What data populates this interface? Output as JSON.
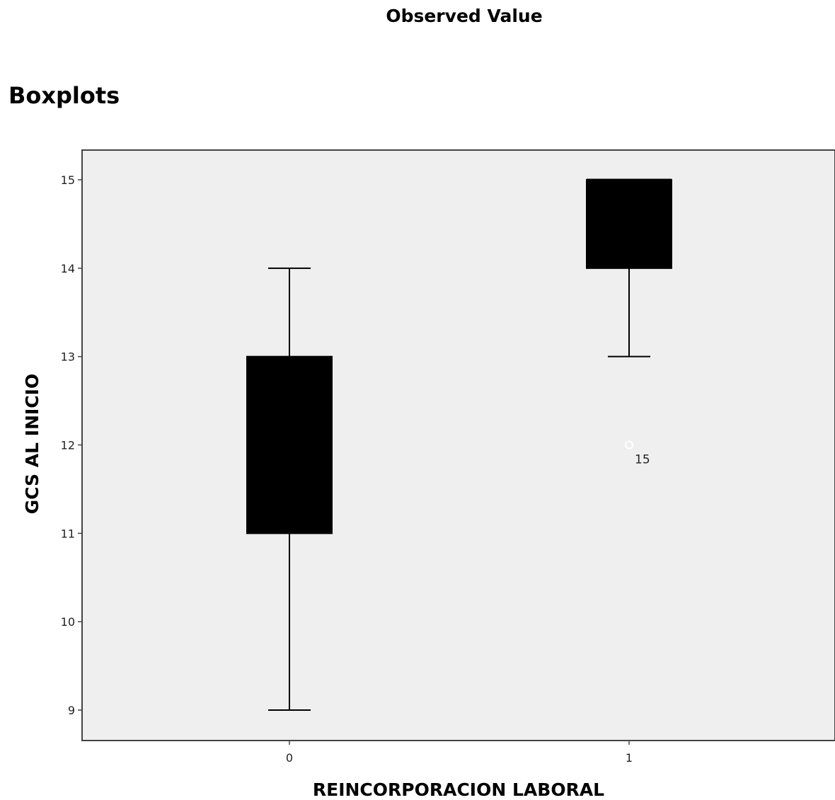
{
  "header": {
    "caption": "Observed Value",
    "section_title": "Boxplots"
  },
  "chart_data": {
    "type": "boxplot",
    "xlabel": "REINCORPORACION LABORAL",
    "ylabel": "GCS AL INICIO",
    "categories": [
      "0",
      "1"
    ],
    "ylim": [
      8.6,
      15.35
    ],
    "yticks": [
      9,
      10,
      11,
      12,
      13,
      14,
      15
    ],
    "grid": false,
    "boxes": [
      {
        "category": "0",
        "whisker_low": 9,
        "q1": 11,
        "median": 12,
        "q3": 13,
        "whisker_high": 14,
        "outliers": []
      },
      {
        "category": "1",
        "whisker_low": 13,
        "q1": 14,
        "median": 15,
        "q3": 15,
        "whisker_high": 15,
        "outliers": [
          {
            "value": 12,
            "label": "15"
          }
        ]
      }
    ],
    "colors": {
      "box_fill": "#000000",
      "plot_background": "#efefef",
      "frame": "#444444"
    }
  }
}
